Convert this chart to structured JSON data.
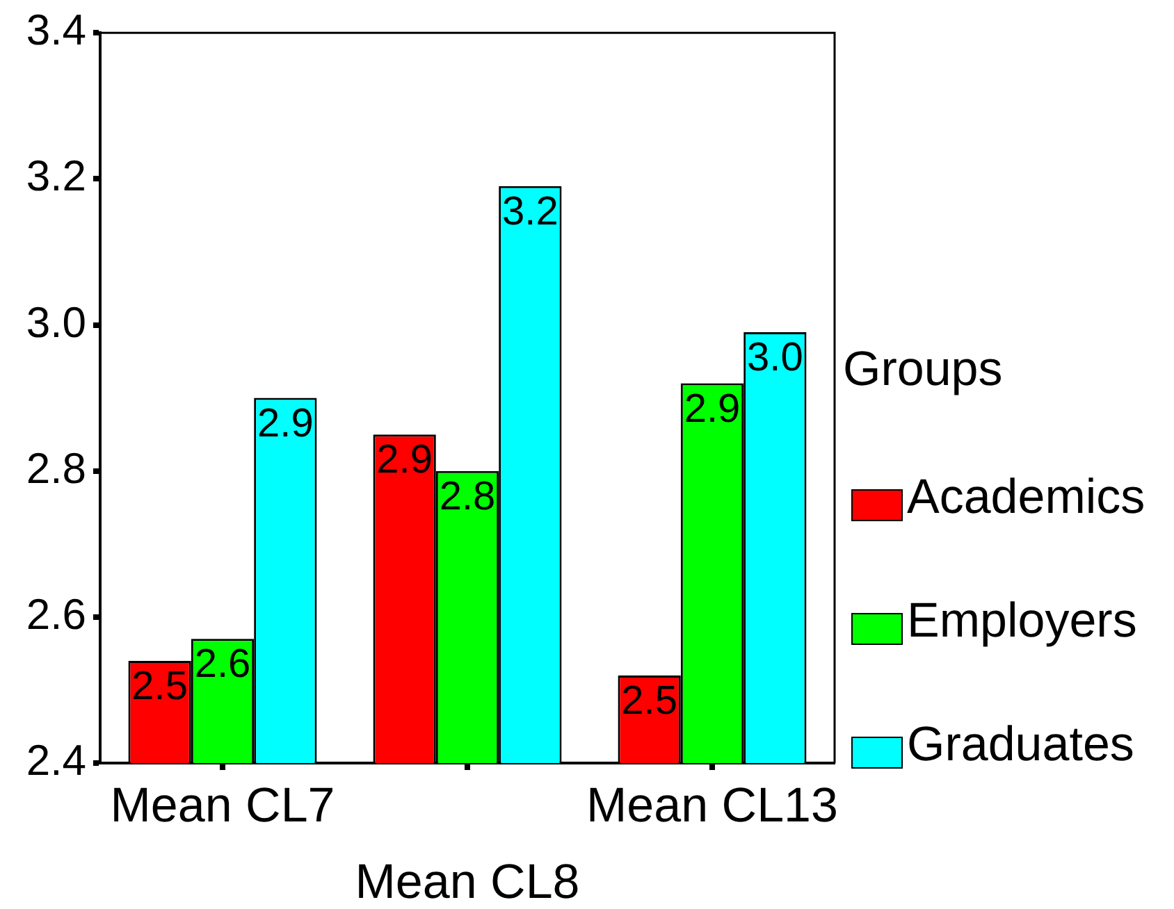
{
  "chart_data": {
    "type": "bar",
    "categories": [
      "Mean CL7",
      "Mean CL8",
      "Mean CL13"
    ],
    "series": [
      {
        "name": "Academics",
        "color": "#ff0000",
        "values": [
          2.54,
          2.85,
          2.52
        ],
        "value_labels": [
          "2.5",
          "2.9",
          "2.5"
        ]
      },
      {
        "name": "Employers",
        "color": "#00ff00",
        "values": [
          2.57,
          2.8,
          2.92
        ],
        "value_labels": [
          "2.6",
          "2.8",
          "2.9"
        ]
      },
      {
        "name": "Graduates",
        "color": "#00ffff",
        "values": [
          2.9,
          3.19,
          2.99
        ],
        "value_labels": [
          "2.9",
          "3.2",
          "3.0"
        ]
      }
    ],
    "ylim": [
      2.4,
      3.4
    ],
    "yticks": [
      2.4,
      2.6,
      2.8,
      {
        "value": 3,
        "label": "3.0"
      },
      3.2,
      3.4
    ],
    "legend_title": "Groups",
    "legend": "right"
  }
}
